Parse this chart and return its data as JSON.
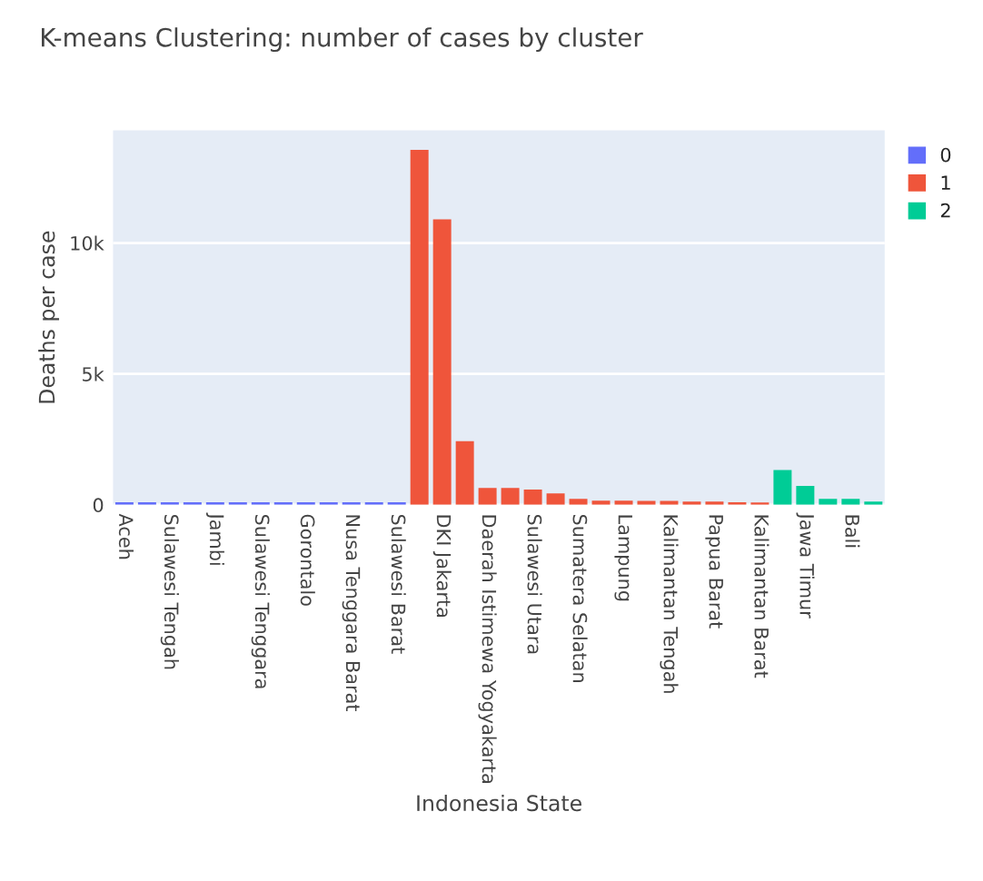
{
  "chart_data": {
    "type": "bar",
    "title": "K-means Clustering: number of cases by cluster",
    "xlabel": "Indonesia State",
    "ylabel": "Deaths per case",
    "categories": [
      "Aceh",
      null,
      "Sulawesi Tengah",
      null,
      "Jambi",
      null,
      "Sulawesi Tenggara",
      null,
      "Gorontalo",
      null,
      "Nusa Tenggara Barat",
      null,
      "Sulawesi Barat",
      null,
      "DKI Jakarta",
      null,
      "Daerah Istimewa Yogyakarta",
      null,
      "Sulawesi Utara",
      null,
      "Sumatera Selatan",
      null,
      "Lampung",
      null,
      "Kalimantan Tengah",
      null,
      "Papua Barat",
      null,
      "Kalimantan Barat",
      null,
      "Jawa Timur",
      null,
      "Bali",
      null
    ],
    "series": [
      {
        "name": "0",
        "color": "#636efa",
        "values": [
          100,
          100,
          100,
          100,
          100,
          100,
          100,
          100,
          100,
          100,
          100,
          100,
          100,
          null,
          null,
          null,
          null,
          null,
          null,
          null,
          null,
          null,
          null,
          null,
          null,
          null,
          null,
          null,
          null,
          null,
          null,
          null,
          null,
          null
        ]
      },
      {
        "name": "1",
        "color": "#ef553b",
        "values": [
          null,
          null,
          null,
          null,
          null,
          null,
          null,
          null,
          null,
          null,
          null,
          null,
          null,
          13560,
          10900,
          2430,
          640,
          640,
          580,
          440,
          230,
          160,
          160,
          150,
          150,
          120,
          120,
          100,
          90,
          null,
          null,
          null,
          null,
          null
        ]
      },
      {
        "name": "2",
        "color": "#00cc96",
        "values": [
          null,
          null,
          null,
          null,
          null,
          null,
          null,
          null,
          null,
          null,
          null,
          null,
          null,
          null,
          null,
          null,
          null,
          null,
          null,
          null,
          null,
          null,
          null,
          null,
          null,
          null,
          null,
          null,
          null,
          1330,
          720,
          230,
          230,
          120
        ]
      }
    ],
    "ylim": [
      0,
      14300
    ],
    "yticks": [
      0,
      {
        "value": 5000,
        "label": "5k"
      },
      {
        "value": 10000,
        "label": "10k"
      }
    ],
    "grid": "y",
    "legend": "top right"
  }
}
